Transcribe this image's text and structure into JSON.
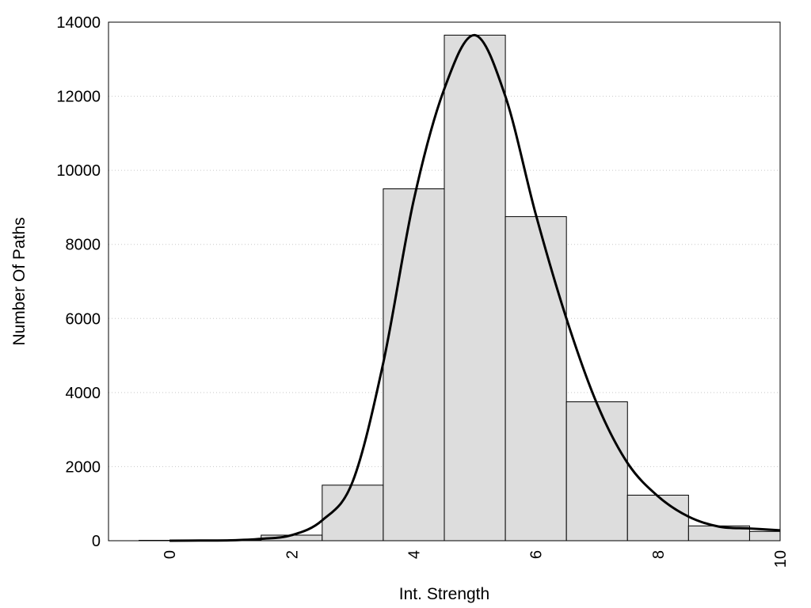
{
  "chart_data": {
    "type": "bar",
    "xlabel": "Int. Strength",
    "ylabel": "Number Of Paths",
    "xlim": [
      -1,
      10
    ],
    "ylim": [
      0,
      14000
    ],
    "x_ticks": [
      "0",
      "2",
      "4",
      "6",
      "8",
      "10"
    ],
    "y_ticks": [
      "0",
      "2000",
      "4000",
      "6000",
      "8000",
      "10000",
      "12000",
      "14000"
    ],
    "grid": "horizontal dotted",
    "legend": "none",
    "bar_color": "#dddddd",
    "bar_edge_color": "#000000",
    "bins": [
      {
        "x": 0,
        "value": 10
      },
      {
        "x": 1,
        "value": 20
      },
      {
        "x": 2,
        "value": 150
      },
      {
        "x": 3,
        "value": 1500
      },
      {
        "x": 4,
        "value": 9500
      },
      {
        "x": 5,
        "value": 13650
      },
      {
        "x": 6,
        "value": 8750
      },
      {
        "x": 7,
        "value": 3750
      },
      {
        "x": 8,
        "value": 1230
      },
      {
        "x": 9,
        "value": 400
      },
      {
        "x": 10,
        "value": 250
      }
    ],
    "density_curve": {
      "x": [
        0,
        0.5,
        1,
        1.5,
        2,
        2.5,
        3,
        3.5,
        4,
        4.5,
        5,
        5.5,
        6,
        6.5,
        7,
        7.5,
        8,
        8.5,
        9,
        9.5,
        10
      ],
      "y": [
        0,
        5,
        10,
        50,
        150,
        550,
        1600,
        4800,
        9200,
        12200,
        13650,
        12000,
        8800,
        6000,
        3700,
        2100,
        1200,
        650,
        380,
        330,
        280
      ]
    }
  }
}
